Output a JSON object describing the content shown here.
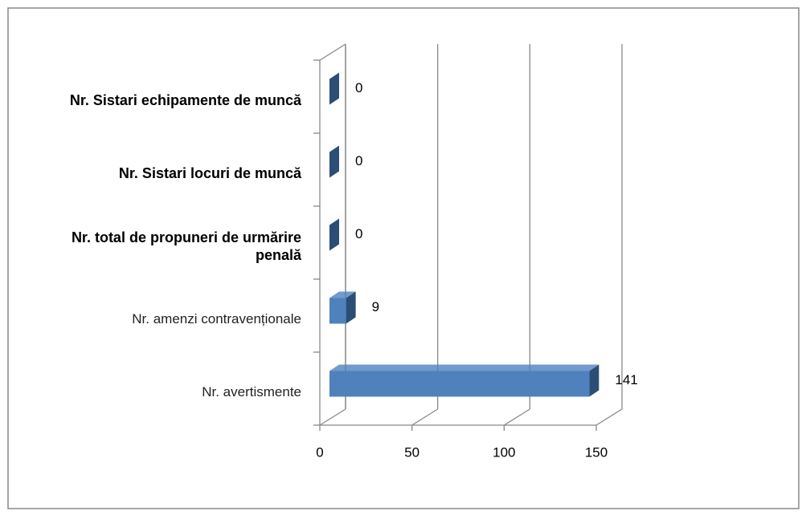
{
  "chart_data": {
    "type": "bar",
    "orientation": "horizontal",
    "categories": [
      "Nr. avertismente",
      "Nr. amenzi contravenționale",
      "Nr. total de propuneri de urmărire penală",
      "Nr. Sistari locuri de muncă",
      "Nr. Sistari echipamente de muncă"
    ],
    "values": [
      141,
      9,
      0,
      0,
      0
    ],
    "color": "#4f81bd",
    "xlim": [
      0,
      150
    ],
    "xticks": [
      0,
      50,
      100,
      150
    ],
    "grid": true
  }
}
